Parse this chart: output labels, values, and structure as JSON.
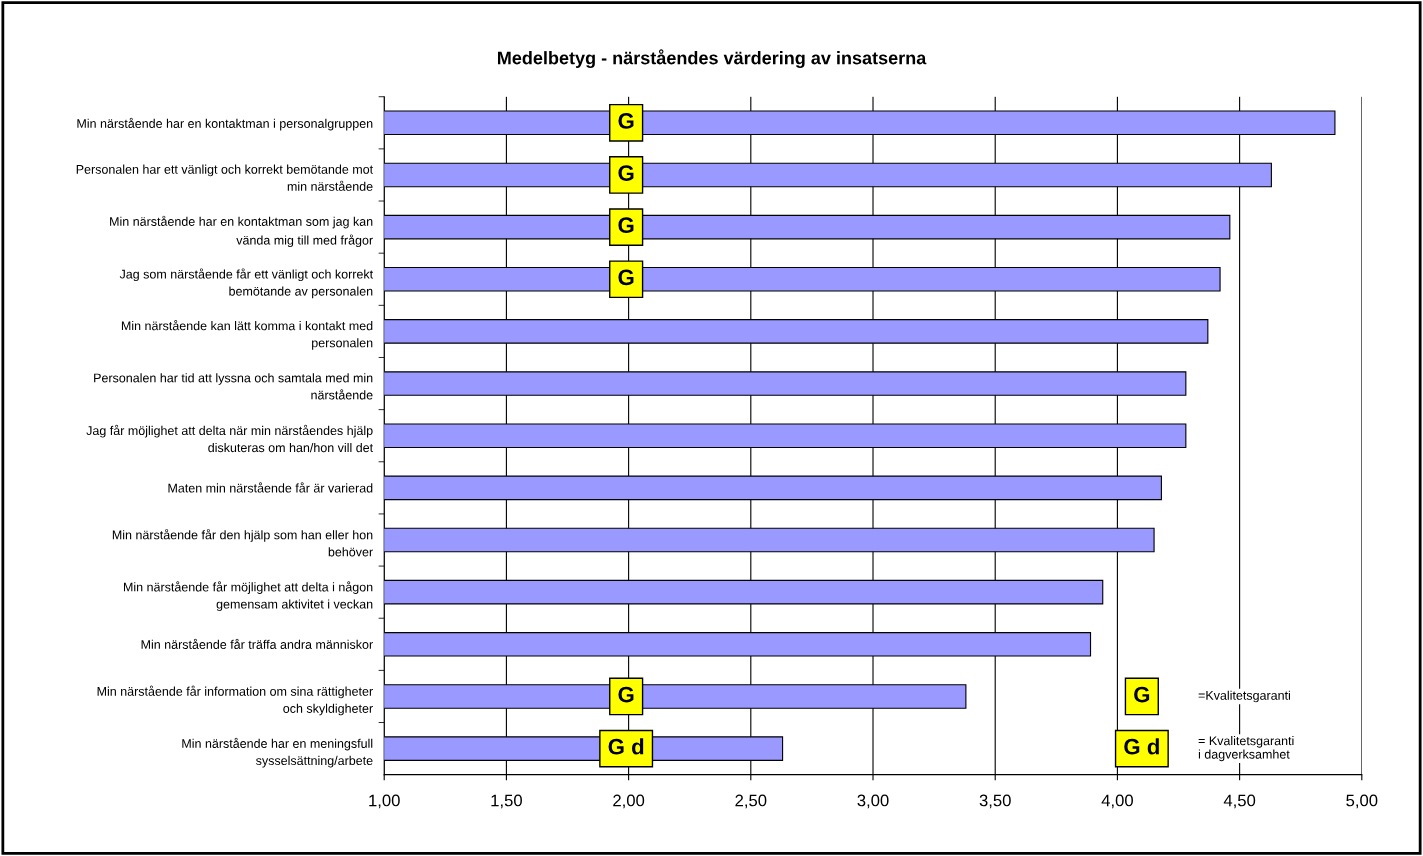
{
  "chart_data": {
    "type": "bar",
    "orientation": "horizontal",
    "title": "Medelbetyg - närståendes värdering av insatserna",
    "categories": [
      "Min närstående har en kontaktman i personalgruppen",
      "Personalen har ett vänligt och korrekt bemötande mot\nmin närstående",
      "Min närstående har en kontaktman som jag kan\nvända mig till med frågor",
      "Jag som närstående får ett vänligt och korrekt\nbemötande av personalen",
      "Min närstående kan lätt komma i kontakt med\npersonalen",
      "Personalen har tid att lyssna och samtala med min\nnärstående",
      "Jag får möjlighet att delta när min närståendes hjälp\ndiskuteras om han/hon vill det",
      "Maten min närstående får är varierad",
      "Min närstående får den hjälp som han eller hon\nbehöver",
      "Min närstående får möjlighet att delta i någon\ngemensam aktivitet i veckan",
      "Min närstående får träffa andra människor",
      "Min närstående får information om sina rättigheter\noch skyldigheter",
      "Min närstående har en meningsfull\nsysselsättning/arbete"
    ],
    "values": [
      4.89,
      4.63,
      4.46,
      4.42,
      4.37,
      4.28,
      4.28,
      4.18,
      4.15,
      3.94,
      3.89,
      3.38,
      2.63
    ],
    "color": "#9999ff",
    "xlim": [
      1,
      5
    ],
    "xticks": [
      {
        "value": 1,
        "label": "1,00"
      },
      {
        "value": 1.5,
        "label": "1,50"
      },
      {
        "value": 2,
        "label": "2,00"
      },
      {
        "value": 2.5,
        "label": "2,50"
      },
      {
        "value": 3,
        "label": "3,00"
      },
      {
        "value": 3.5,
        "label": "3,50"
      },
      {
        "value": 4,
        "label": "4,00"
      },
      {
        "value": 4.5,
        "label": "4,50"
      },
      {
        "value": 5,
        "label": "5,00"
      }
    ],
    "grid": "x",
    "annotations": [
      "G",
      "G",
      "G",
      "G",
      "G",
      "G d",
      "G",
      "=Kvalitetsgaranti",
      "G d",
      "= Kvalitetsgaranti\ni dagverksamhet"
    ]
  }
}
